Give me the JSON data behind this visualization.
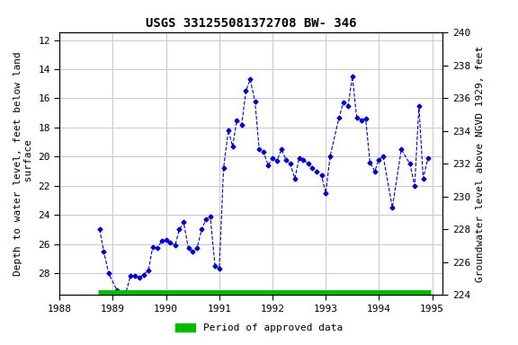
{
  "title": "USGS 331255081372708 BW- 346",
  "ylabel_left": "Depth to water level, feet below land\n surface",
  "ylabel_right": "Groundwater level above NGVD 1929, feet",
  "ylim_left": [
    29.5,
    11.5
  ],
  "ylim_right": [
    224,
    240
  ],
  "xlim": [
    1988.0,
    1995.2
  ],
  "xticks": [
    1988,
    1989,
    1990,
    1991,
    1992,
    1993,
    1994,
    1995
  ],
  "yticks_left": [
    12,
    14,
    16,
    18,
    20,
    22,
    24,
    26,
    28
  ],
  "yticks_right": [
    224,
    226,
    228,
    230,
    232,
    234,
    236,
    238,
    240
  ],
  "line_color": "#0000CC",
  "marker": "D",
  "marker_size": 2.5,
  "line_style": "--",
  "line_width": 0.8,
  "grid_color": "#c8c8c8",
  "bg_color": "#ffffff",
  "legend_label": "Period of approved data",
  "legend_color": "#00bb00",
  "approved_bar_y": 29.35,
  "approved_bar_xstart": 1988.72,
  "approved_bar_xend": 1994.97,
  "title_fontsize": 10,
  "axis_label_fontsize": 8,
  "tick_fontsize": 8,
  "legend_fontsize": 8,
  "data_x": [
    1988.75,
    1988.83,
    1988.92,
    1989.08,
    1989.25,
    1989.33,
    1989.42,
    1989.5,
    1989.58,
    1989.67,
    1989.75,
    1989.83,
    1989.92,
    1990.0,
    1990.08,
    1990.17,
    1990.25,
    1990.33,
    1990.42,
    1990.5,
    1990.58,
    1990.67,
    1990.75,
    1990.83,
    1990.92,
    1991.0,
    1991.08,
    1991.17,
    1991.25,
    1991.33,
    1991.42,
    1991.5,
    1991.58,
    1991.67,
    1991.75,
    1991.83,
    1991.92,
    1992.0,
    1992.08,
    1992.17,
    1992.25,
    1992.33,
    1992.42,
    1992.5,
    1992.58,
    1992.67,
    1992.75,
    1992.83,
    1992.92,
    1993.0,
    1993.08,
    1993.25,
    1993.33,
    1993.42,
    1993.5,
    1993.58,
    1993.67,
    1993.75,
    1993.83,
    1993.92,
    1994.0,
    1994.08,
    1994.25,
    1994.42,
    1994.58,
    1994.67,
    1994.75,
    1994.83,
    1994.92
  ],
  "data_y": [
    25.0,
    26.5,
    28.0,
    29.2,
    29.3,
    28.2,
    28.2,
    28.3,
    28.1,
    27.8,
    26.2,
    26.3,
    25.8,
    25.7,
    25.9,
    26.1,
    25.0,
    24.5,
    26.3,
    26.5,
    26.3,
    25.0,
    24.3,
    24.1,
    27.5,
    27.7,
    20.8,
    18.2,
    19.3,
    17.5,
    17.8,
    15.5,
    14.7,
    16.2,
    19.5,
    19.7,
    20.6,
    20.1,
    20.3,
    19.5,
    20.2,
    20.5,
    21.5,
    20.1,
    20.2,
    20.5,
    20.8,
    21.0,
    21.3,
    22.5,
    20.0,
    17.3,
    16.3,
    16.5,
    14.5,
    17.3,
    17.5,
    17.4,
    20.4,
    21.0,
    20.2,
    20.0,
    23.5,
    19.5,
    20.5,
    22.0,
    16.5,
    21.5,
    20.1
  ]
}
